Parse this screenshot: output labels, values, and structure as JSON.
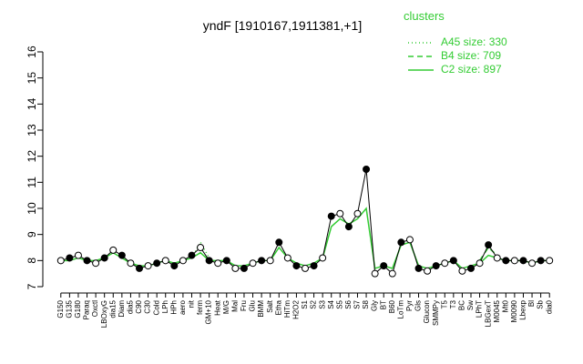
{
  "chart_data": {
    "type": "line",
    "title": "yndF [1910167,1911381,+1]",
    "legend_title": "clusters",
    "categories": [
      "G150",
      "G135",
      "G180",
      "Paraq",
      "Oxctl",
      "LBOxyG",
      "dia15",
      "Diam",
      "dia5",
      "C90",
      "C30",
      "Cold",
      "LPh",
      "HPh",
      "aero",
      "nit",
      "ferm",
      "GM+10",
      "Heat",
      "M/G",
      "Mal",
      "Fru",
      "Glu",
      "BMM",
      "Salt",
      "Etha",
      "HiTm",
      "H2O2",
      "S1",
      "S2",
      "S3",
      "S4",
      "S5",
      "S6",
      "S7",
      "S8",
      "Gly",
      "BT",
      "B60",
      "LoTm",
      "Pyr",
      "Gls",
      "Glucon",
      "SMMPy",
      "T5",
      "T3",
      "BC",
      "Sw",
      "LPhT",
      "LBGexT",
      "M0045",
      "Mt0",
      "M0090",
      "Lbexp",
      "Bl",
      "Sb",
      "dia0"
    ],
    "points": {
      "color": "#000000",
      "values": [
        8.0,
        8.1,
        8.2,
        8.0,
        7.9,
        8.1,
        8.4,
        8.2,
        7.9,
        7.7,
        7.8,
        7.9,
        8.0,
        7.8,
        8.0,
        8.2,
        8.5,
        8.0,
        7.9,
        8.0,
        7.7,
        7.7,
        7.9,
        8.0,
        8.0,
        8.7,
        8.1,
        7.8,
        7.7,
        7.8,
        8.1,
        9.7,
        9.8,
        9.3,
        9.8,
        11.5,
        7.5,
        7.8,
        7.5,
        8.7,
        8.8,
        7.7,
        7.6,
        7.8,
        7.9,
        8.0,
        7.6,
        7.7,
        7.9,
        8.6,
        8.1,
        8.0,
        8.0,
        8.0,
        7.9,
        8.0,
        8.0
      ]
    },
    "series": [
      {
        "name": "A45 size: 330",
        "color": "#33cc33",
        "dash": "1,3",
        "values": [
          null,
          null,
          null,
          null,
          null,
          null,
          null,
          null,
          null,
          null,
          null,
          null,
          null,
          null,
          null,
          8.1,
          8.7,
          8.1,
          null,
          null,
          null,
          null,
          null,
          null,
          null,
          null,
          null,
          null,
          null,
          null,
          null,
          null,
          null,
          null,
          null,
          null,
          null,
          null,
          null,
          null,
          null,
          null,
          null,
          null,
          null,
          null,
          null,
          null,
          null,
          null,
          null,
          null,
          null,
          null,
          null,
          null,
          null
        ]
      },
      {
        "name": "B4 size: 709",
        "color": "#33cc33",
        "dash": "6,4",
        "values": [
          null,
          null,
          null,
          null,
          null,
          null,
          null,
          null,
          null,
          null,
          null,
          null,
          null,
          null,
          null,
          null,
          null,
          null,
          null,
          null,
          null,
          null,
          null,
          null,
          null,
          null,
          null,
          null,
          null,
          null,
          null,
          null,
          null,
          null,
          null,
          null,
          null,
          null,
          null,
          null,
          null,
          null,
          null,
          null,
          null,
          null,
          null,
          null,
          8.0,
          8.5,
          8.2,
          null,
          null,
          null,
          null,
          null,
          null
        ]
      },
      {
        "name": "C2 size: 897",
        "color": "#33cc33",
        "dash": "",
        "values": [
          8.0,
          8.0,
          8.1,
          8.0,
          8.0,
          8.1,
          8.3,
          8.1,
          7.9,
          7.8,
          7.8,
          7.9,
          8.0,
          7.9,
          8.0,
          8.1,
          8.3,
          8.0,
          8.0,
          8.0,
          7.8,
          7.8,
          7.9,
          8.0,
          8.0,
          8.5,
          8.1,
          7.9,
          7.8,
          7.9,
          8.1,
          9.3,
          9.6,
          9.4,
          9.6,
          10.0,
          7.7,
          7.8,
          7.7,
          8.6,
          8.7,
          7.8,
          7.7,
          7.8,
          7.9,
          8.0,
          7.7,
          7.8,
          7.9,
          8.2,
          8.1,
          8.0,
          8.0,
          8.0,
          7.9,
          8.0,
          8.0
        ]
      }
    ],
    "ylim": [
      7,
      16
    ],
    "yticks": [
      7,
      8,
      9,
      10,
      11,
      12,
      13,
      14,
      15,
      16
    ]
  }
}
